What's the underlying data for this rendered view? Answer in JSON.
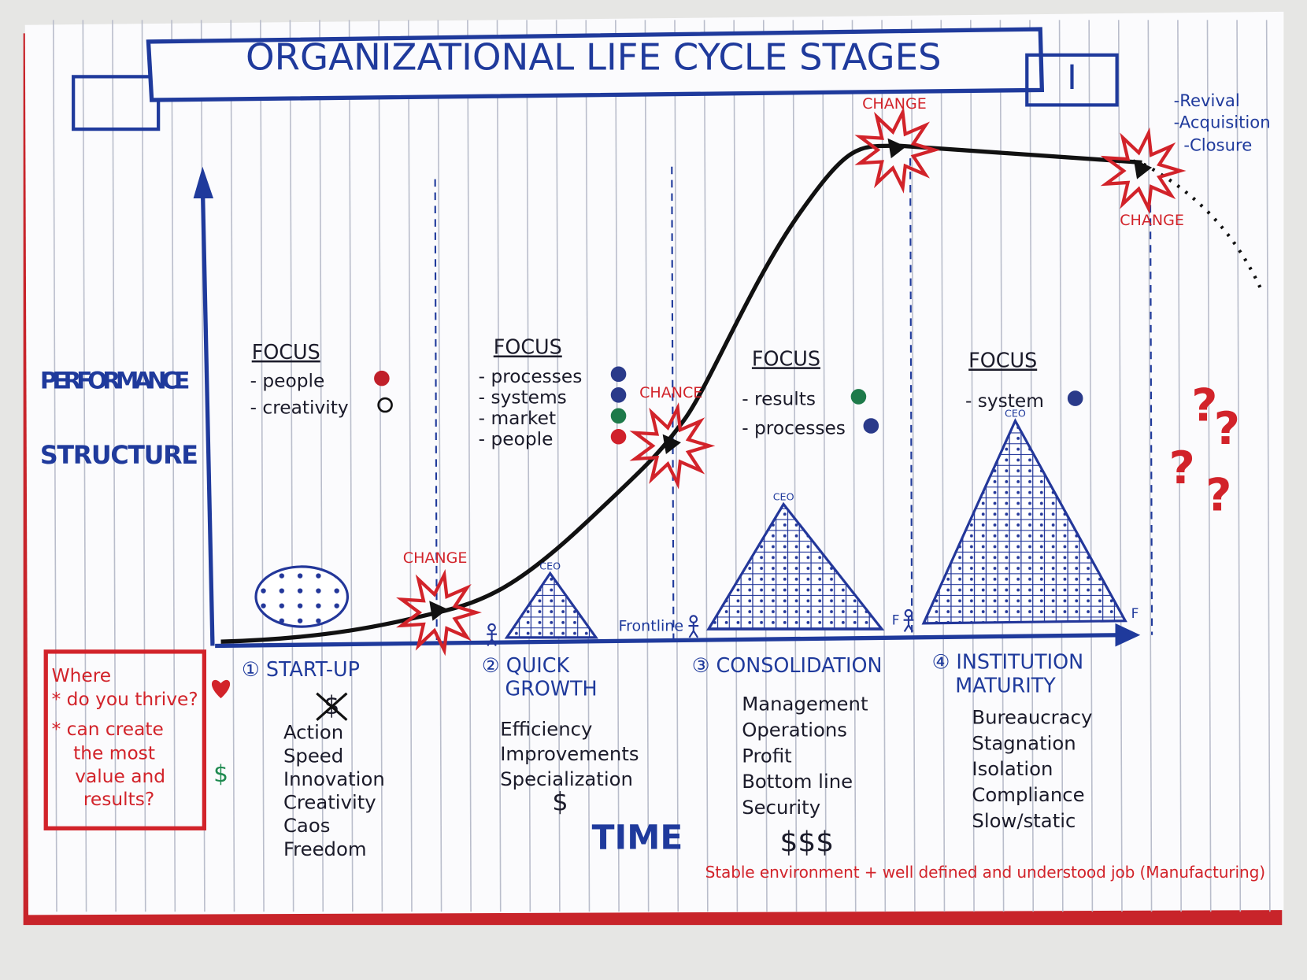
{
  "title": "ORGANIZATIONAL LIFE CYCLE STAGES",
  "title_badge": "I",
  "axes": {
    "y_labels": [
      "PERFORMANCE",
      "STRUCTURE"
    ],
    "x_label": "TIME"
  },
  "change_labels": [
    "CHANGE",
    "CHANCE",
    "CHANGE",
    "CHANGE"
  ],
  "outcomes": [
    "-Revival",
    "-Acquisition",
    "-Closure"
  ],
  "stages": [
    {
      "name": [
        "① START-UP"
      ],
      "focus_heading": "FOCUS",
      "focus": [
        {
          "label": "- people",
          "dot": "#c0202a"
        },
        {
          "label": "- creativity",
          "dot": "none"
        }
      ],
      "traits": [
        "Action",
        "Speed",
        "Innovation",
        "Creativity",
        "Caos",
        "Freedom"
      ],
      "money": "$"
    },
    {
      "name": [
        "② QUICK",
        "GROWTH"
      ],
      "focus_heading": "FOCUS",
      "focus": [
        {
          "label": "- processes",
          "dot": "#2a3a8a"
        },
        {
          "label": "- systems",
          "dot": "#2a3a8a"
        },
        {
          "label": "- market",
          "dot": "#1e7a4a"
        },
        {
          "label": "- people",
          "dot": "#d0202a"
        }
      ],
      "traits": [
        "Efficiency",
        "Improvements",
        "Specialization"
      ],
      "money": "$",
      "pyramid": {
        "top": "CEO",
        "base": "Frontline"
      }
    },
    {
      "name": [
        "③ CONSOLIDATION"
      ],
      "focus_heading": "FOCUS",
      "focus": [
        {
          "label": "- results",
          "dot": "#1e7a4a"
        },
        {
          "label": "- processes",
          "dot": "#2a3a8a"
        }
      ],
      "traits": [
        "Management",
        "Operations",
        "Profit",
        "Bottom line",
        "Security"
      ],
      "money": "$$$",
      "pyramid": {
        "top": "CEO",
        "base": "F"
      }
    },
    {
      "name": [
        "④ INSTITUTION",
        "MATURITY"
      ],
      "focus_heading": "FOCUS",
      "focus": [
        {
          "label": "- system",
          "dot": "#2a3a8a"
        }
      ],
      "traits": [
        "Bureaucracy",
        "Stagnation",
        "Isolation",
        "Compliance",
        "Slow/static"
      ],
      "pyramid": {
        "top": "CEO",
        "base": "F"
      }
    }
  ],
  "question_box": {
    "lines": [
      "Where",
      "* do you thrive?",
      "* can create",
      "the most",
      "value and",
      "results?"
    ]
  },
  "side_symbol": "$",
  "question_marks": [
    "?",
    "?",
    "?",
    "?"
  ],
  "footnote": "Stable environment + well defined and understood job (Manufacturing)"
}
